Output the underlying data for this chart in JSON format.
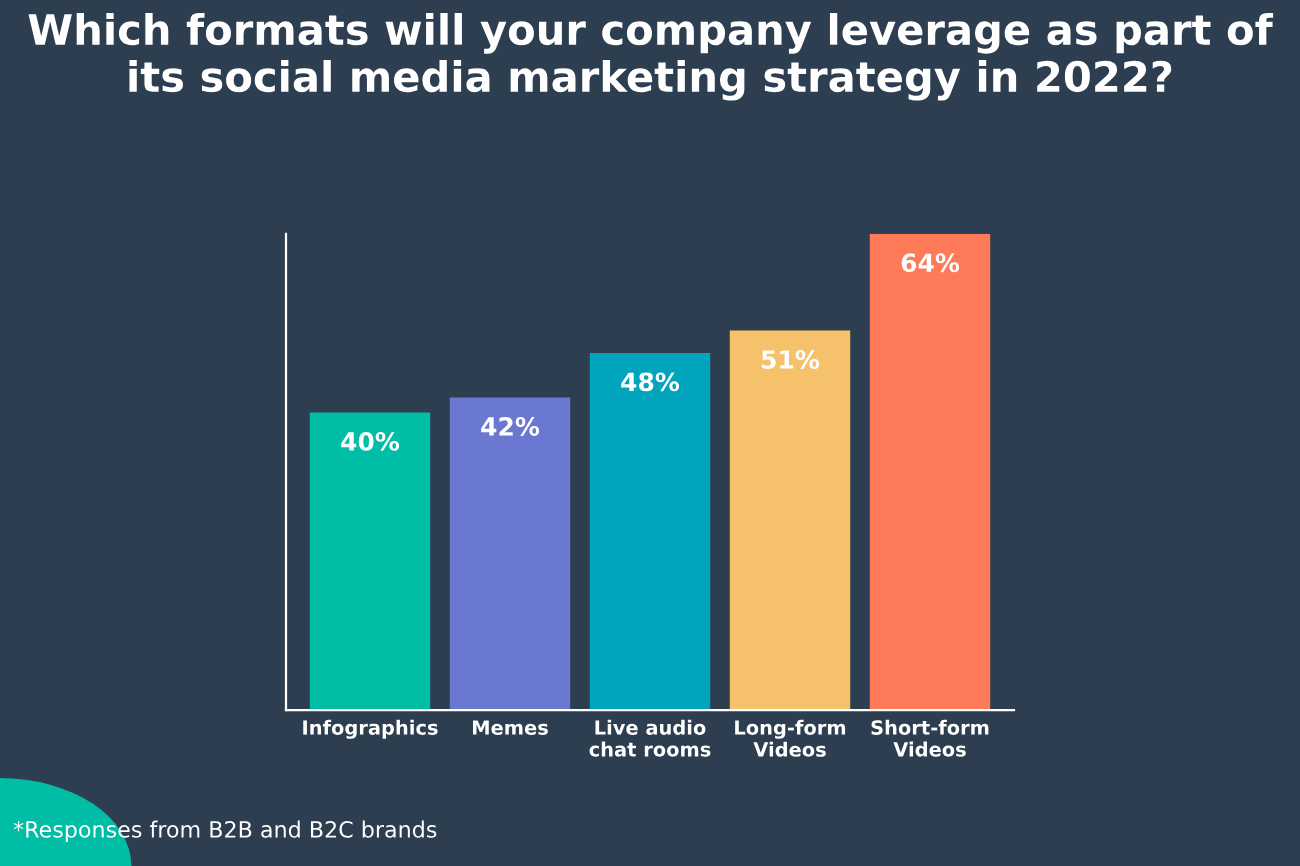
{
  "chart_data": {
    "type": "bar",
    "title": "Which formats will your company leverage as part of its social media marketing strategy in 2022?",
    "categories": [
      "Infographics",
      "Memes",
      "Live audio\nchat rooms",
      "Long-form\nVideos",
      "Short-form\nVideos"
    ],
    "values": [
      40,
      42,
      48,
      51,
      64
    ],
    "colors": [
      "#00bda5",
      "#6a78d1",
      "#00a4bd",
      "#f5c26b",
      "#ff7a59"
    ],
    "value_labels": [
      "40%",
      "42%",
      "48%",
      "51%",
      "64%"
    ],
    "annotations": [
      "*Responses from B2B and B2C brands"
    ],
    "grid": false,
    "legend": false
  }
}
